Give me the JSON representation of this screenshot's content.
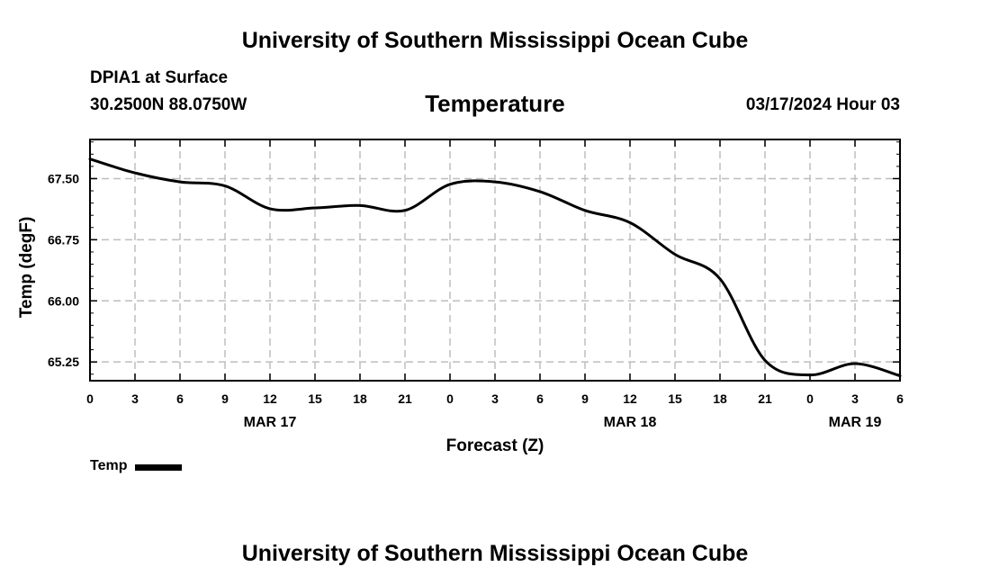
{
  "page": {
    "title_top": "University of Southern Mississippi Ocean Cube",
    "title_bottom": "University of Southern Mississippi Ocean Cube",
    "station": "DPIA1 at Surface",
    "coords": "30.2500N  88.0750W",
    "date": "03/17/2024 Hour 03",
    "chart_title": "Temperature"
  },
  "colors": {
    "line": "#000000",
    "grid": "#bdbdbd",
    "frame": "#000000"
  },
  "chart_data": {
    "type": "line",
    "title": "Temperature",
    "xlabel": "Forecast (Z)",
    "ylabel": "Temp (degF)",
    "xlim": [
      0,
      54
    ],
    "ylim": [
      65.02,
      67.98
    ],
    "y_ticks": [
      65.25,
      66.0,
      66.75,
      67.5
    ],
    "y_tick_labels": [
      "65.25",
      "66.00",
      "66.75",
      "67.50"
    ],
    "x_ticks": [
      0,
      3,
      6,
      9,
      12,
      15,
      18,
      21,
      24,
      27,
      30,
      33,
      36,
      39,
      42,
      45,
      48,
      51,
      54
    ],
    "x_tick_labels": [
      "0",
      "3",
      "6",
      "9",
      "12",
      "15",
      "18",
      "21",
      "0",
      "3",
      "6",
      "9",
      "12",
      "15",
      "18",
      "21",
      "0",
      "3",
      "6"
    ],
    "date_labels": [
      {
        "x": 12,
        "label": "MAR 17"
      },
      {
        "x": 36,
        "label": "MAR 18"
      },
      {
        "x": 51,
        "label": "MAR 19"
      }
    ],
    "grid": true,
    "legend_position": "bottom-left",
    "series": [
      {
        "name": "Temp",
        "x": [
          0,
          3,
          6,
          9,
          12,
          15,
          18,
          21,
          24,
          27,
          30,
          33,
          36,
          39,
          42,
          45,
          48,
          51,
          54
        ],
        "values": [
          67.74,
          67.57,
          67.46,
          67.41,
          67.13,
          67.14,
          67.17,
          67.11,
          67.43,
          67.46,
          67.34,
          67.11,
          66.96,
          66.57,
          66.27,
          65.27,
          65.09,
          65.23,
          65.08
        ]
      }
    ]
  }
}
